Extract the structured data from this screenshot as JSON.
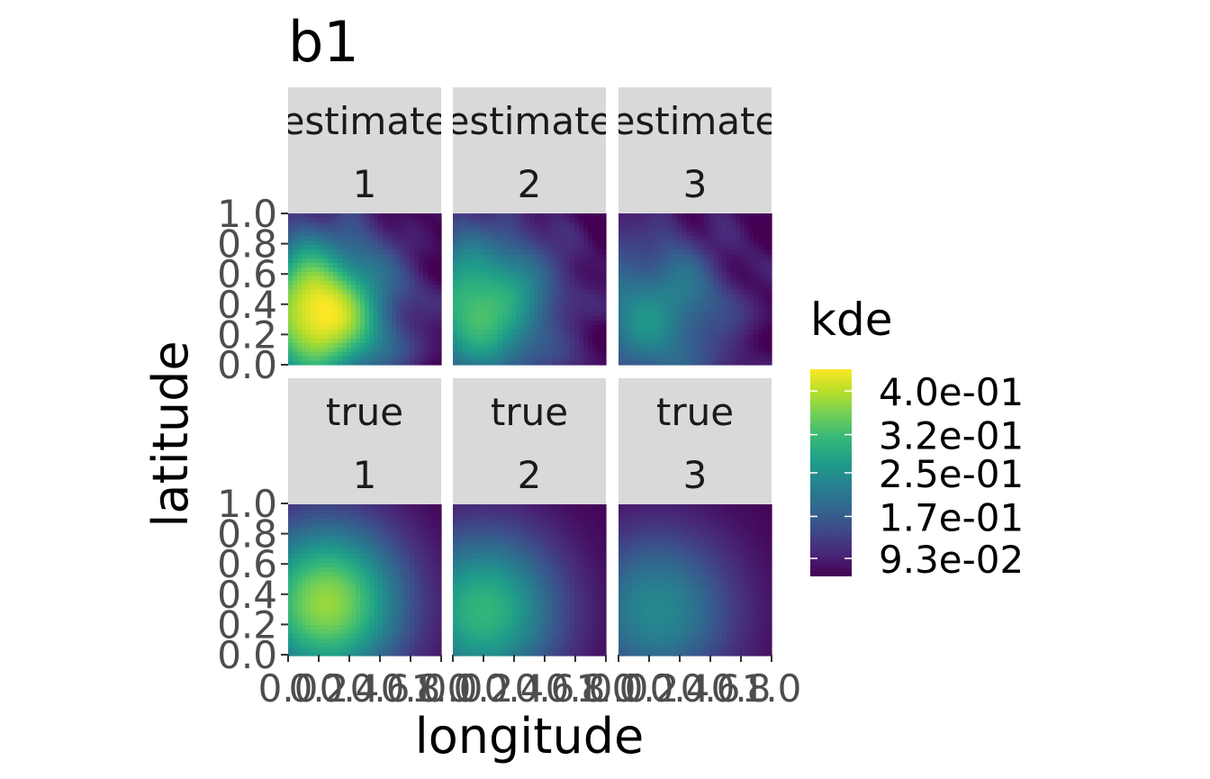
{
  "chart_data": {
    "type": "heatmap",
    "title": "b1",
    "xlabel": "longitude",
    "ylabel": "latitude",
    "xlim": [
      0,
      1
    ],
    "ylim": [
      0,
      1
    ],
    "facet_rows": [
      "estimate",
      "true"
    ],
    "facet_cols": [
      "1",
      "2",
      "3"
    ],
    "x_ticks": [
      "0.0",
      "0.2",
      "0.4",
      "0.6",
      "0.8",
      "1.0"
    ],
    "y_ticks": [
      "0.0",
      "0.2",
      "0.4",
      "0.6",
      "0.8",
      "1.0"
    ],
    "panels": [
      {
        "row": "estimate",
        "col": "1",
        "peak_kde": 0.44,
        "peak_x": 0.2,
        "peak_y": 0.35
      },
      {
        "row": "estimate",
        "col": "2",
        "peak_kde": 0.33,
        "peak_x": 0.2,
        "peak_y": 0.4
      },
      {
        "row": "estimate",
        "col": "3",
        "peak_kde": 0.25,
        "peak_x": 0.25,
        "peak_y": 0.35
      },
      {
        "row": "true",
        "col": "1",
        "peak_kde": 0.38,
        "peak_x": 0.25,
        "peak_y": 0.35
      },
      {
        "row": "true",
        "col": "2",
        "peak_kde": 0.31,
        "peak_x": 0.2,
        "peak_y": 0.3
      },
      {
        "row": "true",
        "col": "3",
        "peak_kde": 0.24,
        "peak_x": 0.25,
        "peak_y": 0.3
      }
    ],
    "legend": {
      "title": "kde",
      "placement": "right",
      "range": [
        0.06,
        0.44
      ],
      "breaks": [
        0.4,
        0.32,
        0.25,
        0.17,
        0.093
      ],
      "labels": [
        "4.0e-01",
        "3.2e-01",
        "2.5e-01",
        "1.7e-01",
        "9.3e-02"
      ]
    }
  },
  "colors": {
    "viridis": [
      "#440154",
      "#482878",
      "#3e4a89",
      "#31688e",
      "#26828e",
      "#1f9e89",
      "#35b779",
      "#6ece58",
      "#b5de2b",
      "#fde725"
    ],
    "strip_bg": "#d9d9d9",
    "tick": "#333333"
  }
}
